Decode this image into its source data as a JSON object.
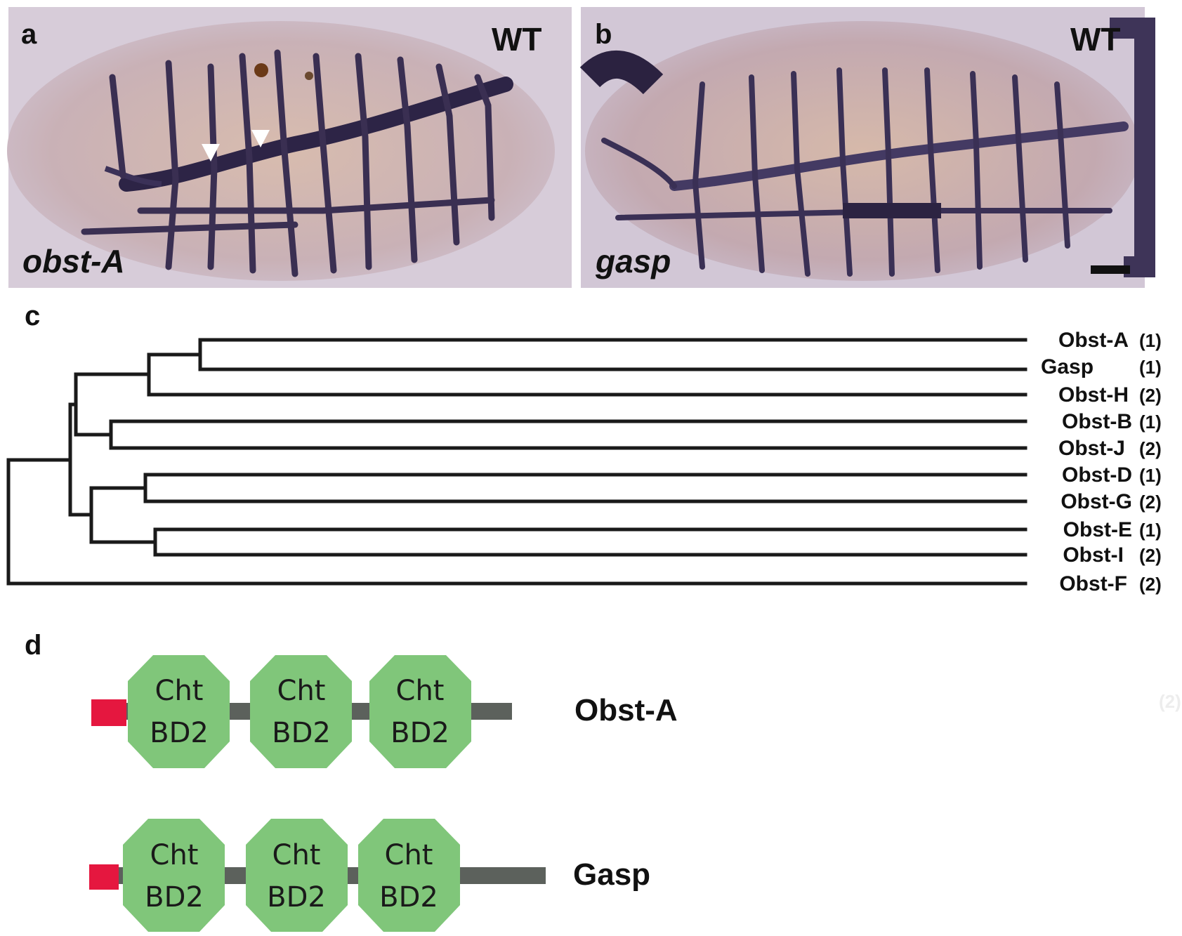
{
  "panels": {
    "a": {
      "letter": "a",
      "genotype": "WT",
      "gene": "obst-A"
    },
    "b": {
      "letter": "b",
      "genotype": "WT",
      "gene": "gasp"
    },
    "c": {
      "letter": "c",
      "leaves": [
        {
          "name": "Obst-A",
          "group": "(1)"
        },
        {
          "name": "Gasp",
          "group": "(1)"
        },
        {
          "name": "Obst-H",
          "group": "(2)"
        },
        {
          "name": "Obst-B",
          "group": "(1)"
        },
        {
          "name": "Obst-J",
          "group": "(2)"
        },
        {
          "name": "Obst-D",
          "group": "(1)"
        },
        {
          "name": "Obst-G",
          "group": "(2)"
        },
        {
          "name": "Obst-E",
          "group": "(1)"
        },
        {
          "name": "Obst-I",
          "group": "(2)"
        },
        {
          "name": "Obst-F",
          "group": "(2)"
        }
      ]
    },
    "d": {
      "letter": "d",
      "domain_line1": "Cht",
      "domain_line2": "BD2",
      "proteins": [
        {
          "name": "Obst-A",
          "domain_count": 3
        },
        {
          "name": "Gasp",
          "domain_count": 3
        }
      ],
      "faint_mark": "(2)"
    }
  },
  "colors": {
    "signal_peptide": "#e5173f",
    "domain_fill": "#80c67a",
    "backbone": "#5c615c",
    "tree_line": "#1a1a1a",
    "photo_bg": "#d9c4c6",
    "stain": "#3a2f52"
  }
}
